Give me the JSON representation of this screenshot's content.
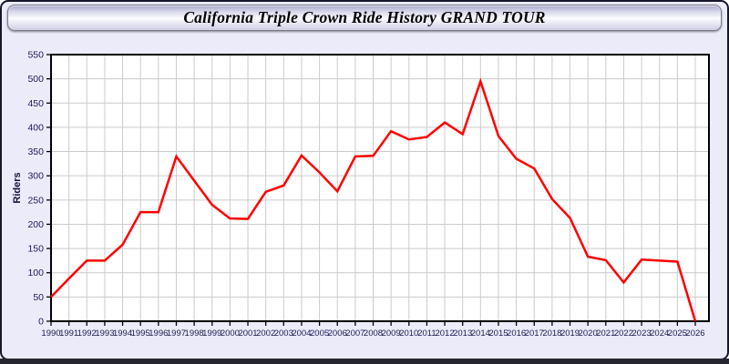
{
  "window": {
    "banner": {
      "title": "California Triple Crown Ride History GRAND TOUR"
    }
  },
  "chart_data": {
    "type": "line",
    "title": "California Triple Crown Ride History GRAND TOUR",
    "xlabel": "",
    "ylabel": "Riders",
    "x": [
      1990,
      1991,
      1992,
      1993,
      1994,
      1995,
      1996,
      1997,
      1998,
      1999,
      2000,
      2001,
      2002,
      2003,
      2004,
      2005,
      2006,
      2007,
      2008,
      2009,
      2010,
      2011,
      2012,
      2013,
      2014,
      2015,
      2016,
      2017,
      2018,
      2019,
      2020,
      2021,
      2022,
      2023,
      2024,
      2025,
      2026
    ],
    "series": [
      {
        "name": "Riders",
        "color": "#ff0000",
        "values": [
          50,
          88,
          125,
          125,
          158,
          225,
          225,
          340,
          290,
          240,
          212,
          211,
          267,
          280,
          342,
          307,
          268,
          340,
          341,
          392,
          375,
          380,
          410,
          386,
          495,
          382,
          335,
          315,
          252,
          213,
          133,
          126,
          80,
          127,
          125,
          123,
          0
        ]
      }
    ],
    "ylim": [
      0,
      550
    ],
    "ytick_step": 50,
    "grid": true,
    "legend_position": "none",
    "colors": {
      "line": "#ff0000",
      "grid": "#cccccc",
      "frame": "#000000",
      "tick_label": "#1c1c52",
      "plot_bg": "#ffffff",
      "page_bg": "#ebebf9"
    }
  }
}
